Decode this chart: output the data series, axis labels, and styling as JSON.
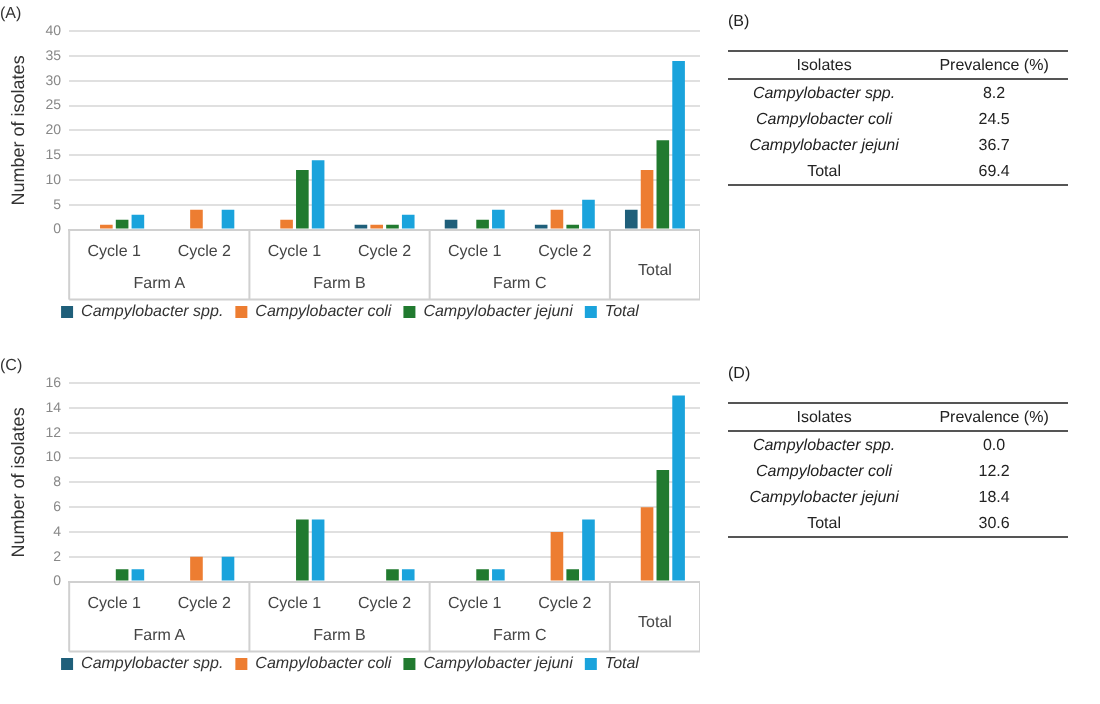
{
  "chart_data": [
    {
      "type": "bar",
      "title": "(A)",
      "ylabel": "Number of isolates",
      "categories": [
        "Cycle 1",
        "Cycle 2",
        "Cycle 1",
        "Cycle 2",
        "Cycle 1",
        "Cycle 2",
        "Total"
      ],
      "annotations": [
        "Farm A",
        "Farm B",
        "Farm C"
      ],
      "series": [
        {
          "name": "Campylobacter spp.",
          "color": "#1f5f7a",
          "values": [
            0,
            0,
            0,
            1,
            2,
            1,
            4
          ]
        },
        {
          "name": "Campylobacter coli",
          "color": "#ed7d31",
          "values": [
            1,
            4,
            2,
            1,
            0,
            4,
            12
          ]
        },
        {
          "name": "Campylobacter jejuni",
          "color": "#217a2f",
          "values": [
            2,
            0,
            12,
            1,
            2,
            1,
            18
          ]
        },
        {
          "name": "Total",
          "color": "#1aa3dc",
          "values": [
            3,
            4,
            14,
            3,
            4,
            6,
            34
          ]
        }
      ],
      "ylim": [
        0,
        40
      ],
      "yticks": [
        0,
        5,
        10,
        15,
        20,
        25,
        30,
        35,
        40
      ],
      "grid": "y",
      "legend": "bottom"
    },
    {
      "type": "other",
      "title": "(B)",
      "xlabel": "Isolates",
      "ylabel": "Prevalence (%)",
      "categories": [
        "Campylobacter spp.",
        "Campylobacter coli",
        "Campylobacter jejuni",
        "Total"
      ],
      "annotations": [
        "8.2",
        "24.5",
        "36.7",
        "69.4"
      ]
    },
    {
      "type": "bar",
      "title": "(C)",
      "ylabel": "Number of isolates",
      "categories": [
        "Cycle 1",
        "Cycle 2",
        "Cycle 1",
        "Cycle 2",
        "Cycle 1",
        "Cycle 2",
        "Total"
      ],
      "annotations": [
        "Farm A",
        "Farm B",
        "Farm C"
      ],
      "series": [
        {
          "name": "Campylobacter spp.",
          "color": "#1f5f7a",
          "values": [
            0,
            0,
            0,
            0,
            0,
            0,
            0
          ]
        },
        {
          "name": "Campylobacter coli",
          "color": "#ed7d31",
          "values": [
            0,
            2,
            0,
            0,
            0,
            4,
            6
          ]
        },
        {
          "name": "Campylobacter jejuni",
          "color": "#217a2f",
          "values": [
            1,
            0,
            5,
            1,
            1,
            1,
            9
          ]
        },
        {
          "name": "Total",
          "color": "#1aa3dc",
          "values": [
            1,
            2,
            5,
            1,
            1,
            5,
            15
          ]
        }
      ],
      "ylim": [
        0,
        16
      ],
      "yticks": [
        0,
        2,
        4,
        6,
        8,
        10,
        12,
        14,
        16
      ],
      "grid": "y",
      "legend": "bottom"
    },
    {
      "type": "other",
      "title": "(D)",
      "xlabel": "Isolates",
      "ylabel": "Prevalence (%)",
      "categories": [
        "Campylobacter spp.",
        "Campylobacter coli",
        "Campylobacter jejuni",
        "Total"
      ],
      "annotations": [
        "0.0",
        "12.2",
        "18.4",
        "30.6"
      ]
    }
  ]
}
